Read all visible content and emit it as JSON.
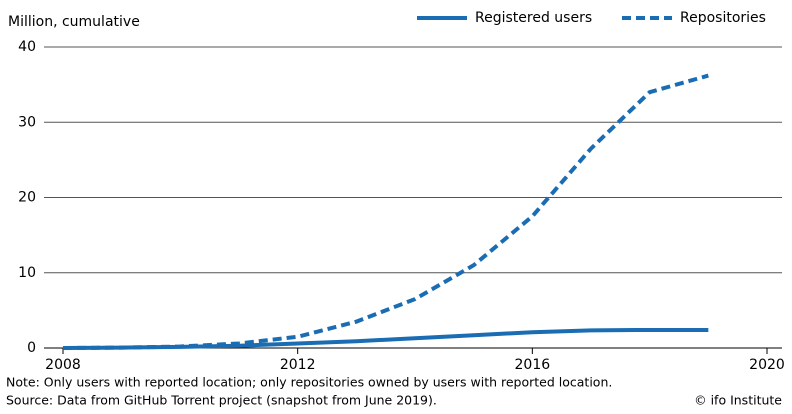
{
  "chart_data": {
    "type": "line",
    "y_label": "Million, cumulative",
    "x": [
      2008,
      2009,
      2010,
      2011,
      2012,
      2013,
      2014,
      2015,
      2016,
      2017,
      2018,
      2019
    ],
    "series": [
      {
        "name": "Registered users",
        "color": "#1a6db3",
        "dash": "solid",
        "values": [
          0,
          0.05,
          0.15,
          0.3,
          0.6,
          0.9,
          1.3,
          1.7,
          2.1,
          2.35,
          2.4,
          2.4
        ]
      },
      {
        "name": "Repositories",
        "color": "#1a6db3",
        "dash": "dashed",
        "values": [
          0,
          0.05,
          0.2,
          0.6,
          1.5,
          3.5,
          6.5,
          11,
          17.5,
          26.5,
          34,
          36.2
        ]
      }
    ],
    "xlim": [
      2008,
      2020
    ],
    "xticks": [
      2008,
      2012,
      2016,
      2020
    ],
    "ylim": [
      0,
      40
    ],
    "yticks": [
      0,
      10,
      20,
      30,
      40
    ],
    "grid": true,
    "legend": "top-right",
    "notes": [
      "Note: Only users with reported location; only repositories owned by users with reported location.",
      "Source: Data from GitHub Torrent project (snapshot from June 2019)."
    ],
    "credit": "© ifo Institute"
  }
}
